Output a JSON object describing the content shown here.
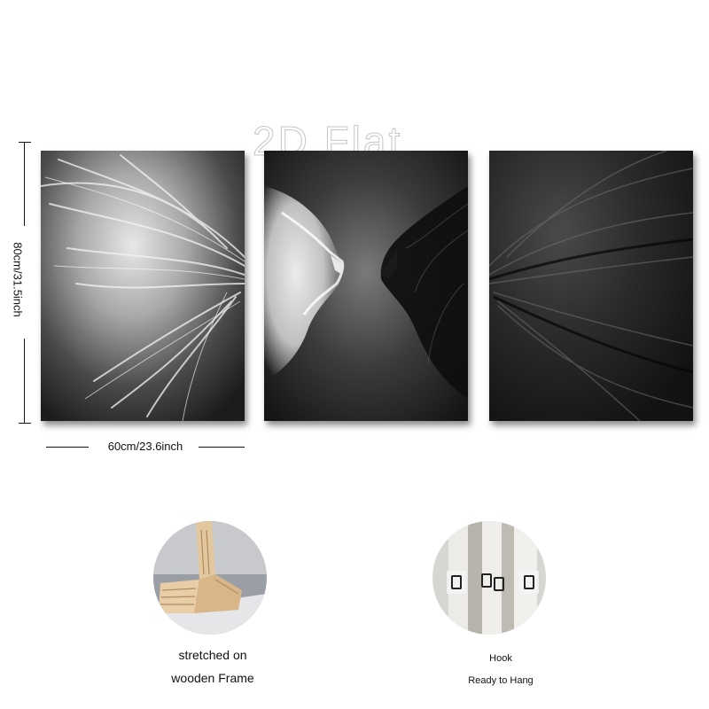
{
  "watermark": "2D Flat",
  "dimensions": {
    "height_label": "80cm/31.5inch",
    "width_label": "60cm/23.6inch"
  },
  "features": [
    {
      "icon": "wooden-frame-photo",
      "line1": "stretched on",
      "line2": "wooden Frame"
    },
    {
      "icon": "hook-photo",
      "line1": "Hook",
      "line2": "Ready to Hang"
    }
  ],
  "colors": {
    "background": "#ffffff",
    "text": "#111111"
  }
}
